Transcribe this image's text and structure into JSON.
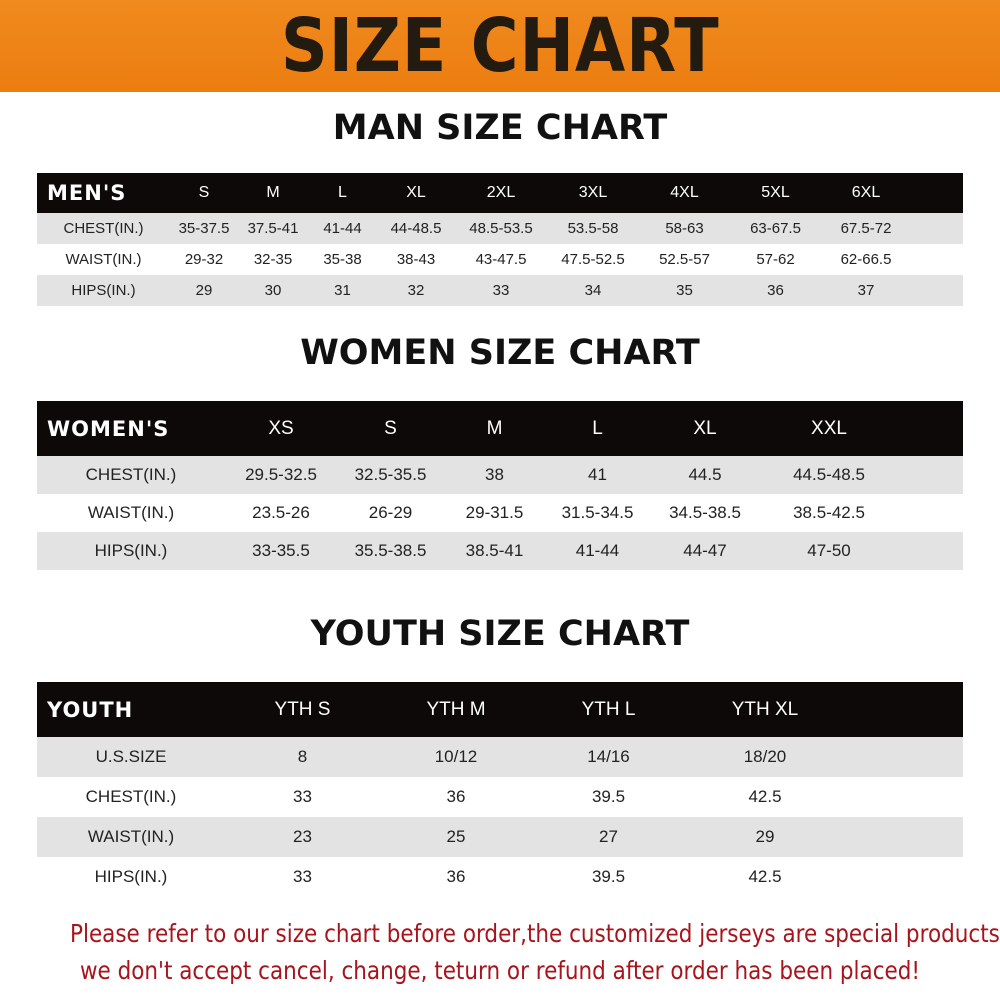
{
  "title": "SIZE CHART",
  "colors": {
    "banner": "#ec7d10",
    "header_row": "#0c0908",
    "stripe": "#e3e3e3",
    "note": "#a8141c"
  },
  "men": {
    "title": "MAN SIZE CHART",
    "header": [
      "MEN'S",
      "S",
      "M",
      "L",
      "XL",
      "2XL",
      "3XL",
      "4XL",
      "5XL",
      "6XL"
    ],
    "rows": [
      [
        "CHEST(IN.)",
        "35-37.5",
        "37.5-41",
        "41-44",
        "44-48.5",
        "48.5-53.5",
        "53.5-58",
        "58-63",
        "63-67.5",
        "67.5-72"
      ],
      [
        "WAIST(IN.)",
        "29-32",
        "32-35",
        "35-38",
        "38-43",
        "43-47.5",
        "47.5-52.5",
        "52.5-57",
        "57-62",
        "62-66.5"
      ],
      [
        "HIPS(IN.)",
        "29",
        "30",
        "31",
        "32",
        "33",
        "34",
        "35",
        "36",
        "37"
      ]
    ]
  },
  "women": {
    "title": "WOMEN SIZE CHART",
    "header": [
      "WOMEN'S",
      "XS",
      "S",
      "M",
      "L",
      "XL",
      "XXL"
    ],
    "rows": [
      [
        "CHEST(IN.)",
        "29.5-32.5",
        "32.5-35.5",
        "38",
        "41",
        "44.5",
        "44.5-48.5"
      ],
      [
        "WAIST(IN.)",
        "23.5-26",
        "26-29",
        "29-31.5",
        "31.5-34.5",
        "34.5-38.5",
        "38.5-42.5"
      ],
      [
        "HIPS(IN.)",
        "33-35.5",
        "35.5-38.5",
        "38.5-41",
        "41-44",
        "44-47",
        "47-50"
      ]
    ]
  },
  "youth": {
    "title": "YOUTH SIZE CHART",
    "header": [
      "YOUTH",
      "YTH S",
      "YTH M",
      "YTH L",
      "YTH XL"
    ],
    "rows": [
      [
        "U.S.SIZE",
        "8",
        "10/12",
        "14/16",
        "18/20"
      ],
      [
        "CHEST(IN.)",
        "33",
        "36",
        "39.5",
        "42.5"
      ],
      [
        "WAIST(IN.)",
        "23",
        "25",
        "27",
        "29"
      ],
      [
        "HIPS(IN.)",
        "33",
        "36",
        "39.5",
        "42.5"
      ]
    ]
  },
  "note": {
    "line1": "Please refer to our size chart before order,the customized jerseys are special products,",
    "line2": "we don't accept cancel, change, teturn or refund after order has been placed!"
  }
}
